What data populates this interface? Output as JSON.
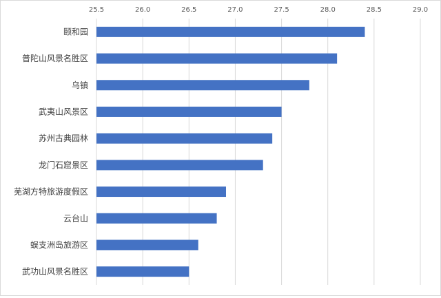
{
  "chart_data": {
    "type": "bar",
    "orientation": "horizontal",
    "title": "",
    "xlabel": "",
    "ylabel": "",
    "categories": [
      "颐和园",
      "普陀山风景名胜区",
      "乌镇",
      "武夷山风景区",
      "苏州古典园林",
      "龙门石窟景区",
      "芜湖方特旅游度假区",
      "云台山",
      "蜈支洲岛旅游区",
      "武功山风景名胜区"
    ],
    "values": [
      28.4,
      28.1,
      27.8,
      27.5,
      27.4,
      27.3,
      26.9,
      26.8,
      26.6,
      26.5
    ],
    "xlim": [
      25.5,
      29.0
    ],
    "ticks": [
      "25.5",
      "26.0",
      "26.5",
      "27.0",
      "27.5",
      "28.0",
      "28.5",
      "29.0"
    ],
    "axis_position": "top",
    "grid": true,
    "legend": "none",
    "bar_color": "#4472C4",
    "grid_color": "#d9d9d9"
  }
}
